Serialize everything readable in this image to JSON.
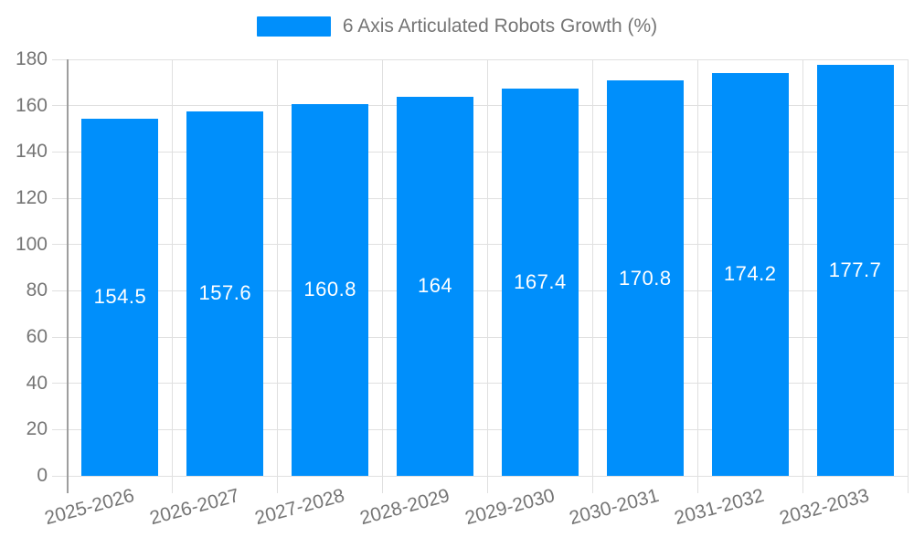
{
  "legend": {
    "series_label": "6 Axis Articulated Robots Growth (%)",
    "swatch_color": "#008FFB"
  },
  "chart_data": {
    "type": "bar",
    "title": "6 Axis Articulated Robots Growth (%)",
    "categories": [
      "2025-2026",
      "2026-2027",
      "2027-2028",
      "2028-2029",
      "2029-2030",
      "2030-2031",
      "2031-2032",
      "2032-2033"
    ],
    "series": [
      {
        "name": "6 Axis Articulated Robots Growth (%)",
        "values": [
          154.5,
          157.6,
          160.8,
          164,
          167.4,
          170.8,
          174.2,
          177.7
        ]
      }
    ],
    "data_labels": [
      "154.5",
      "157.6",
      "160.8",
      "164",
      "167.4",
      "170.8",
      "174.2",
      "177.7"
    ],
    "xlabel": "",
    "ylabel": "",
    "ylim": [
      0,
      180
    ],
    "ytick_step": 20,
    "ytick_labels": [
      "0",
      "20",
      "40",
      "60",
      "80",
      "100",
      "120",
      "140",
      "160",
      "180"
    ],
    "grid": true,
    "legend_position": "top",
    "x_label_rotation_deg": -15,
    "colors": {
      "bar": "#008FFB",
      "data_label": "#ffffff",
      "axis_text": "#757575",
      "gridline": "#e0e0e0",
      "axis_line": "#9e9e9e",
      "background": "#ffffff"
    }
  }
}
